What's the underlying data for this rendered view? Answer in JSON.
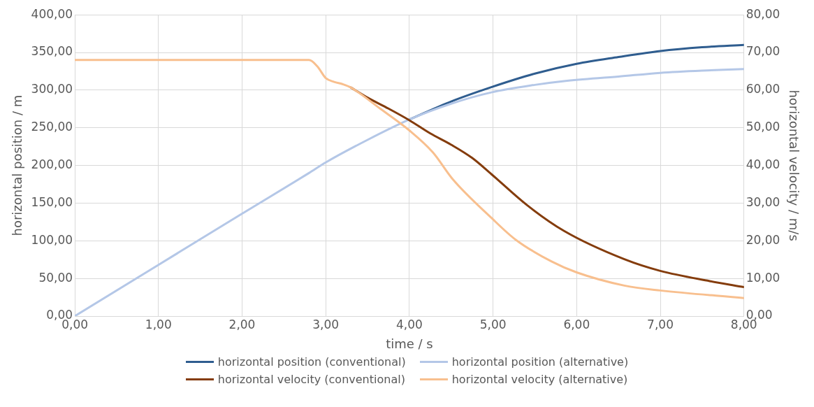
{
  "chart_data": {
    "type": "line",
    "xlabel": "time / s",
    "ylabel": "horizontal position / m",
    "y2label": "horizontal velocity / m/s",
    "xlim": [
      0,
      8
    ],
    "ylim": [
      0,
      400
    ],
    "y2lim": [
      0,
      80
    ],
    "xticks": [
      {
        "value": 0,
        "label": "0,00"
      },
      {
        "value": 1,
        "label": "1,00"
      },
      {
        "value": 2,
        "label": "2,00"
      },
      {
        "value": 3,
        "label": "3,00"
      },
      {
        "value": 4,
        "label": "4,00"
      },
      {
        "value": 5,
        "label": "5,00"
      },
      {
        "value": 6,
        "label": "6,00"
      },
      {
        "value": 7,
        "label": "7,00"
      },
      {
        "value": 8,
        "label": "8,00"
      }
    ],
    "yticks": [
      {
        "value": 0,
        "label": "0,00"
      },
      {
        "value": 50,
        "label": "50,00"
      },
      {
        "value": 100,
        "label": "100,00"
      },
      {
        "value": 150,
        "label": "150,00"
      },
      {
        "value": 200,
        "label": "200,00"
      },
      {
        "value": 250,
        "label": "250,00"
      },
      {
        "value": 300,
        "label": "300,00"
      },
      {
        "value": 350,
        "label": "350,00"
      },
      {
        "value": 400,
        "label": "400,00"
      }
    ],
    "y2ticks": [
      {
        "value": 0,
        "label": "0,00"
      },
      {
        "value": 10,
        "label": "10,00"
      },
      {
        "value": 20,
        "label": "20,00"
      },
      {
        "value": 30,
        "label": "30,00"
      },
      {
        "value": 40,
        "label": "40,00"
      },
      {
        "value": 50,
        "label": "50,00"
      },
      {
        "value": 60,
        "label": "60,00"
      },
      {
        "value": 70,
        "label": "70,00"
      },
      {
        "value": 80,
        "label": "80,00"
      }
    ],
    "grid": true,
    "legend": "bottom",
    "marker": "none",
    "line_style": "solid",
    "series": [
      {
        "name": "horizontal position (conventional)",
        "color": "#2f5d8f",
        "x": [
          4,
          4.5,
          4.98,
          5.5,
          6,
          6.5,
          7,
          7.5,
          8
        ],
        "values": [
          261,
          285,
          304,
          322,
          335,
          344,
          352,
          357,
          360
        ]
      },
      {
        "name": "horizontal position (alternative)",
        "color": "#b4c7e7",
        "x": [
          0,
          1,
          2,
          2.8,
          3,
          3.5,
          4,
          4.5,
          4.98,
          5.5,
          5.85,
          6.5,
          7,
          7.5,
          8
        ],
        "values": [
          0,
          68,
          136,
          190,
          204,
          234,
          261,
          282,
          297,
          307,
          312,
          318,
          323,
          326,
          328
        ]
      },
      {
        "name": "horizontal velocity (conventional)",
        "color": "#843c0c",
        "axis": "y2",
        "x": [
          3.3,
          3.5,
          3.75,
          4,
          4.25,
          4.5,
          4.75,
          4.98,
          5.41,
          5.85,
          6.57,
          7,
          7.59,
          8
        ],
        "values": [
          60.7,
          58,
          55.1,
          52,
          48.5,
          45.5,
          42,
          37.7,
          29.4,
          22.6,
          15.1,
          12,
          9.3,
          7.7
        ]
      },
      {
        "name": "horizontal velocity (alternative)",
        "color": "#f8bf8e",
        "axis": "y2",
        "x": [
          0,
          1,
          2,
          2.8,
          2.9,
          3,
          3.1,
          3.2,
          3.3,
          3.65,
          4,
          4.28,
          4.52,
          4.98,
          5.27,
          5.7,
          6,
          6.57,
          7,
          8
        ],
        "values": [
          68,
          68,
          68,
          68,
          66.3,
          63.2,
          62.2,
          61.6,
          60.7,
          55.1,
          49.3,
          43.5,
          36.3,
          26.1,
          20.3,
          14.5,
          11.6,
          8.1,
          6.8,
          4.8
        ]
      }
    ]
  }
}
